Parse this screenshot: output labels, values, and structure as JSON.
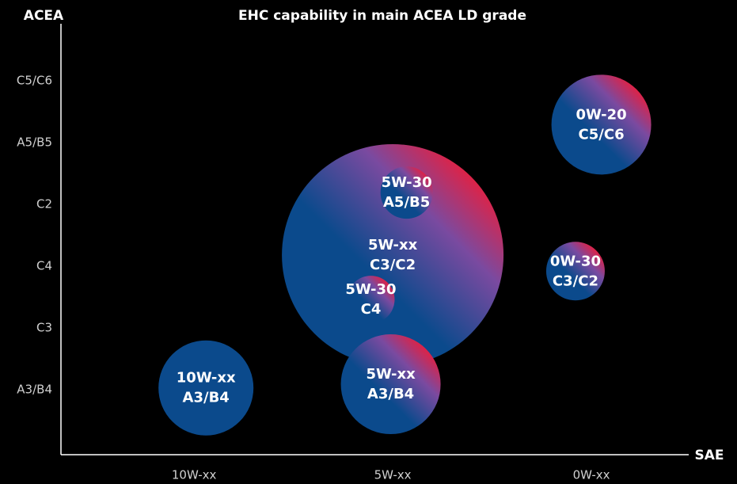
{
  "chart_data": {
    "type": "bubble",
    "title": "EHC capability in main ACEA LD grade",
    "y_label": "ACEA",
    "x_label": "SAE",
    "xlim": [
      -0.67,
      2.49
    ],
    "xticks": [
      {
        "value": 0,
        "label": "10W-xx"
      },
      {
        "value": 1,
        "label": "5W-xx"
      },
      {
        "value": 2,
        "label": "0W-xx"
      }
    ],
    "ylim": [
      -1.05,
      6.05
    ],
    "yticks": [
      {
        "value": 0,
        "label": "A3/B4"
      },
      {
        "value": 1,
        "label": "C3"
      },
      {
        "value": 2,
        "label": "C4"
      },
      {
        "value": 3,
        "label": "C2"
      },
      {
        "value": 4,
        "label": "A5/B5"
      },
      {
        "value": 5,
        "label": "C5/C6"
      }
    ],
    "x": [
      1.0,
      1.07,
      0.89,
      0.06,
      0.99,
      2.05,
      1.92
    ],
    "values": [
      2.18,
      3.19,
      1.46,
      0.03,
      0.09,
      4.29,
      1.92
    ],
    "sizes": [
      140,
      33,
      30,
      60,
      63,
      63,
      37
    ],
    "labels": [
      [
        "5W-xx",
        "C3/C2"
      ],
      [
        "5W-30",
        "A5/B5"
      ],
      [
        "5W-30",
        "C4"
      ],
      [
        "10W-xx",
        "A3/B4"
      ],
      [
        "5W-xx",
        "A3/B4"
      ],
      [
        "0W-20",
        "C5/C6"
      ],
      [
        "0W-30",
        "C3/C2"
      ]
    ],
    "fills": [
      "gradient",
      "gradient",
      "gradient",
      "solid",
      "gradient",
      "gradient",
      "gradient"
    ],
    "colors": [
      "#0b4a8c",
      "#7a4aa0",
      "#ee1c38"
    ]
  }
}
